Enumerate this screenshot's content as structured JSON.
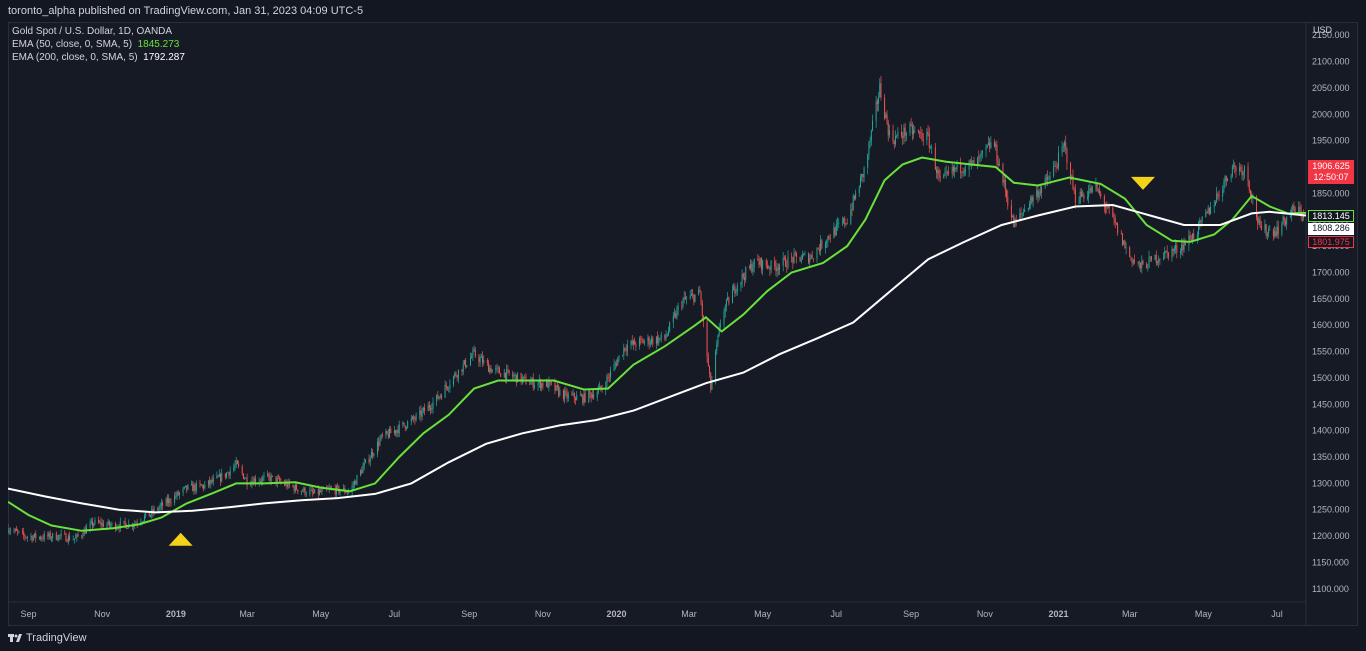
{
  "header": {
    "published": "toronto_alpha published on TradingView.com, Jan 31, 2023 04:09 UTC-5"
  },
  "legend": {
    "symbol": "Gold Spot / U.S. Dollar, 1D, OANDA",
    "ema50_label": "EMA (50, close, 0, SMA, 5)",
    "ema50_value": "1845.273",
    "ema200_label": "EMA (200, close, 0, SMA, 5)",
    "ema200_value": "1792.287"
  },
  "axis": {
    "currency": "USD"
  },
  "footer": {
    "brand": "TradingView"
  },
  "price_tags": {
    "last_price": "1906.625",
    "countdown": "12:50:07",
    "ema50_tag": "1813.145",
    "ema200_tag": "1808.286",
    "low_tag": "1801.975"
  },
  "colors": {
    "background": "#131722",
    "up": "#26a69a",
    "down": "#ef5350",
    "ema50": "#69e13b",
    "ema200": "#ffffff",
    "signal": "#f5d21a",
    "price_tag_red": "#f23645"
  },
  "chart_data": {
    "type": "candlestick",
    "ylim": [
      1075,
      2175
    ],
    "y_ticks": [
      2150,
      2100,
      2050,
      2000,
      1950,
      1900,
      1850,
      1800,
      1750,
      1700,
      1650,
      1600,
      1550,
      1500,
      1450,
      1400,
      1350,
      1300,
      1250,
      1200,
      1150,
      1100
    ],
    "y_tick_labels": [
      "2150.000",
      "2100.000",
      "2050.000",
      "2000.000",
      "1950.000",
      "1900.000",
      "1850.000",
      "1800.000",
      "1750.000",
      "1700.000",
      "1650.000",
      "1600.000",
      "1550.000",
      "1500.000",
      "1450.000",
      "1400.000",
      "1350.000",
      "1300.000",
      "1250.000",
      "1200.000",
      "1150.000",
      "1100.000"
    ],
    "x_range": [
      "2018-08-15",
      "2021-07-25"
    ],
    "x_ticks": [
      {
        "date": "2018-09-01",
        "label": "Sep"
      },
      {
        "date": "2018-11-01",
        "label": "Nov"
      },
      {
        "date": "2019-01-01",
        "label": "2019"
      },
      {
        "date": "2019-03-01",
        "label": "Mar"
      },
      {
        "date": "2019-05-01",
        "label": "May"
      },
      {
        "date": "2019-07-01",
        "label": "Jul"
      },
      {
        "date": "2019-09-01",
        "label": "Sep"
      },
      {
        "date": "2019-11-01",
        "label": "Nov"
      },
      {
        "date": "2020-01-01",
        "label": "2020"
      },
      {
        "date": "2020-03-01",
        "label": "Mar"
      },
      {
        "date": "2020-05-01",
        "label": "May"
      },
      {
        "date": "2020-07-01",
        "label": "Jul"
      },
      {
        "date": "2020-09-01",
        "label": "Sep"
      },
      {
        "date": "2020-11-01",
        "label": "Nov"
      },
      {
        "date": "2021-01-01",
        "label": "2021"
      },
      {
        "date": "2021-03-01",
        "label": "Mar"
      },
      {
        "date": "2021-05-01",
        "label": "May"
      },
      {
        "date": "2021-07-01",
        "label": "Jul"
      }
    ],
    "price_path": [
      [
        "2018-08-15",
        1215
      ],
      [
        "2018-08-28",
        1200
      ],
      [
        "2018-09-10",
        1198
      ],
      [
        "2018-09-25",
        1200
      ],
      [
        "2018-10-10",
        1195
      ],
      [
        "2018-10-25",
        1225
      ],
      [
        "2018-11-10",
        1220
      ],
      [
        "2018-11-25",
        1222
      ],
      [
        "2018-12-10",
        1240
      ],
      [
        "2018-12-25",
        1265
      ],
      [
        "2019-01-10",
        1290
      ],
      [
        "2019-01-25",
        1295
      ],
      [
        "2019-02-10",
        1315
      ],
      [
        "2019-02-20",
        1335
      ],
      [
        "2019-03-01",
        1305
      ],
      [
        "2019-03-20",
        1310
      ],
      [
        "2019-04-05",
        1295
      ],
      [
        "2019-04-25",
        1280
      ],
      [
        "2019-05-10",
        1288
      ],
      [
        "2019-05-25",
        1285
      ],
      [
        "2019-06-05",
        1330
      ],
      [
        "2019-06-20",
        1385
      ],
      [
        "2019-07-05",
        1405
      ],
      [
        "2019-07-20",
        1425
      ],
      [
        "2019-08-05",
        1460
      ],
      [
        "2019-08-20",
        1505
      ],
      [
        "2019-09-05",
        1545
      ],
      [
        "2019-09-20",
        1515
      ],
      [
        "2019-10-05",
        1505
      ],
      [
        "2019-10-20",
        1492
      ],
      [
        "2019-11-05",
        1488
      ],
      [
        "2019-11-20",
        1465
      ],
      [
        "2019-12-05",
        1462
      ],
      [
        "2019-12-20",
        1480
      ],
      [
        "2020-01-08",
        1560
      ],
      [
        "2020-01-25",
        1570
      ],
      [
        "2020-02-10",
        1575
      ],
      [
        "2020-02-24",
        1645
      ],
      [
        "2020-03-10",
        1660
      ],
      [
        "2020-03-19",
        1480
      ],
      [
        "2020-03-28",
        1620
      ],
      [
        "2020-04-10",
        1680
      ],
      [
        "2020-04-25",
        1720
      ],
      [
        "2020-05-10",
        1710
      ],
      [
        "2020-05-25",
        1725
      ],
      [
        "2020-06-10",
        1730
      ],
      [
        "2020-06-25",
        1770
      ],
      [
        "2020-07-10",
        1800
      ],
      [
        "2020-07-25",
        1900
      ],
      [
        "2020-08-06",
        2050
      ],
      [
        "2020-08-15",
        1950
      ],
      [
        "2020-08-30",
        1970
      ],
      [
        "2020-09-15",
        1955
      ],
      [
        "2020-09-25",
        1870
      ],
      [
        "2020-10-10",
        1900
      ],
      [
        "2020-10-25",
        1905
      ],
      [
        "2020-11-08",
        1950
      ],
      [
        "2020-11-25",
        1790
      ],
      [
        "2020-12-10",
        1840
      ],
      [
        "2020-12-25",
        1880
      ],
      [
        "2021-01-06",
        1940
      ],
      [
        "2021-01-15",
        1840
      ],
      [
        "2021-02-01",
        1860
      ],
      [
        "2021-02-15",
        1800
      ],
      [
        "2021-03-01",
        1730
      ],
      [
        "2021-03-10",
        1710
      ],
      [
        "2021-03-25",
        1730
      ],
      [
        "2021-04-10",
        1745
      ],
      [
        "2021-04-25",
        1775
      ],
      [
        "2021-05-10",
        1835
      ],
      [
        "2021-05-25",
        1900
      ],
      [
        "2021-06-05",
        1895
      ],
      [
        "2021-06-17",
        1780
      ],
      [
        "2021-07-01",
        1780
      ],
      [
        "2021-07-15",
        1820
      ],
      [
        "2021-07-25",
        1808
      ]
    ],
    "series": [
      {
        "name": "EMA (50, close, 0, SMA, 5)",
        "color": "#69e13b",
        "points": [
          [
            "2018-08-15",
            1265
          ],
          [
            "2018-09-01",
            1240
          ],
          [
            "2018-09-20",
            1220
          ],
          [
            "2018-10-15",
            1210
          ],
          [
            "2018-11-10",
            1215
          ],
          [
            "2018-12-01",
            1222
          ],
          [
            "2018-12-20",
            1235
          ],
          [
            "2019-01-10",
            1262
          ],
          [
            "2019-02-01",
            1282
          ],
          [
            "2019-02-20",
            1300
          ],
          [
            "2019-03-15",
            1300
          ],
          [
            "2019-04-10",
            1302
          ],
          [
            "2019-05-01",
            1292
          ],
          [
            "2019-05-25",
            1285
          ],
          [
            "2019-06-15",
            1300
          ],
          [
            "2019-07-05",
            1350
          ],
          [
            "2019-07-25",
            1395
          ],
          [
            "2019-08-15",
            1430
          ],
          [
            "2019-09-05",
            1480
          ],
          [
            "2019-09-25",
            1495
          ],
          [
            "2019-10-15",
            1495
          ],
          [
            "2019-11-10",
            1495
          ],
          [
            "2019-12-05",
            1478
          ],
          [
            "2019-12-25",
            1480
          ],
          [
            "2020-01-15",
            1525
          ],
          [
            "2020-02-10",
            1560
          ],
          [
            "2020-03-05",
            1598
          ],
          [
            "2020-03-15",
            1615
          ],
          [
            "2020-03-28",
            1588
          ],
          [
            "2020-04-15",
            1620
          ],
          [
            "2020-05-05",
            1665
          ],
          [
            "2020-05-25",
            1700
          ],
          [
            "2020-06-20",
            1718
          ],
          [
            "2020-07-10",
            1750
          ],
          [
            "2020-07-25",
            1800
          ],
          [
            "2020-08-10",
            1875
          ],
          [
            "2020-08-25",
            1905
          ],
          [
            "2020-09-10",
            1918
          ],
          [
            "2020-09-30",
            1910
          ],
          [
            "2020-10-20",
            1905
          ],
          [
            "2020-11-10",
            1900
          ],
          [
            "2020-11-25",
            1870
          ],
          [
            "2020-12-15",
            1865
          ],
          [
            "2021-01-10",
            1880
          ],
          [
            "2021-02-05",
            1868
          ],
          [
            "2021-02-25",
            1840
          ],
          [
            "2021-03-15",
            1790
          ],
          [
            "2021-04-05",
            1760
          ],
          [
            "2021-04-20",
            1758
          ],
          [
            "2021-05-10",
            1772
          ],
          [
            "2021-05-25",
            1800
          ],
          [
            "2021-06-10",
            1845
          ],
          [
            "2021-06-25",
            1825
          ],
          [
            "2021-07-10",
            1812
          ],
          [
            "2021-07-25",
            1813
          ]
        ]
      },
      {
        "name": "EMA (200, close, 0, SMA, 5)",
        "color": "#ffffff",
        "points": [
          [
            "2018-08-15",
            1290
          ],
          [
            "2018-09-15",
            1275
          ],
          [
            "2018-10-15",
            1262
          ],
          [
            "2018-11-15",
            1250
          ],
          [
            "2018-12-15",
            1245
          ],
          [
            "2019-01-15",
            1248
          ],
          [
            "2019-02-15",
            1255
          ],
          [
            "2019-03-15",
            1262
          ],
          [
            "2019-04-15",
            1268
          ],
          [
            "2019-05-15",
            1272
          ],
          [
            "2019-06-15",
            1280
          ],
          [
            "2019-07-15",
            1300
          ],
          [
            "2019-08-15",
            1340
          ],
          [
            "2019-09-15",
            1375
          ],
          [
            "2019-10-15",
            1395
          ],
          [
            "2019-11-15",
            1410
          ],
          [
            "2019-12-15",
            1420
          ],
          [
            "2020-01-15",
            1438
          ],
          [
            "2020-02-15",
            1465
          ],
          [
            "2020-03-15",
            1490
          ],
          [
            "2020-04-15",
            1510
          ],
          [
            "2020-05-15",
            1545
          ],
          [
            "2020-06-15",
            1575
          ],
          [
            "2020-07-15",
            1605
          ],
          [
            "2020-08-15",
            1665
          ],
          [
            "2020-09-15",
            1725
          ],
          [
            "2020-10-15",
            1758
          ],
          [
            "2020-11-15",
            1790
          ],
          [
            "2020-12-15",
            1808
          ],
          [
            "2021-01-15",
            1825
          ],
          [
            "2021-02-15",
            1828
          ],
          [
            "2021-03-15",
            1810
          ],
          [
            "2021-04-15",
            1790
          ],
          [
            "2021-05-15",
            1790
          ],
          [
            "2021-06-10",
            1812
          ],
          [
            "2021-06-25",
            1815
          ],
          [
            "2021-07-25",
            1808
          ]
        ]
      }
    ],
    "annotations": [
      {
        "type": "triangle-up",
        "date": "2019-01-05",
        "price": 1195
      },
      {
        "type": "triangle-down",
        "date": "2021-03-12",
        "price": 1868
      }
    ]
  }
}
